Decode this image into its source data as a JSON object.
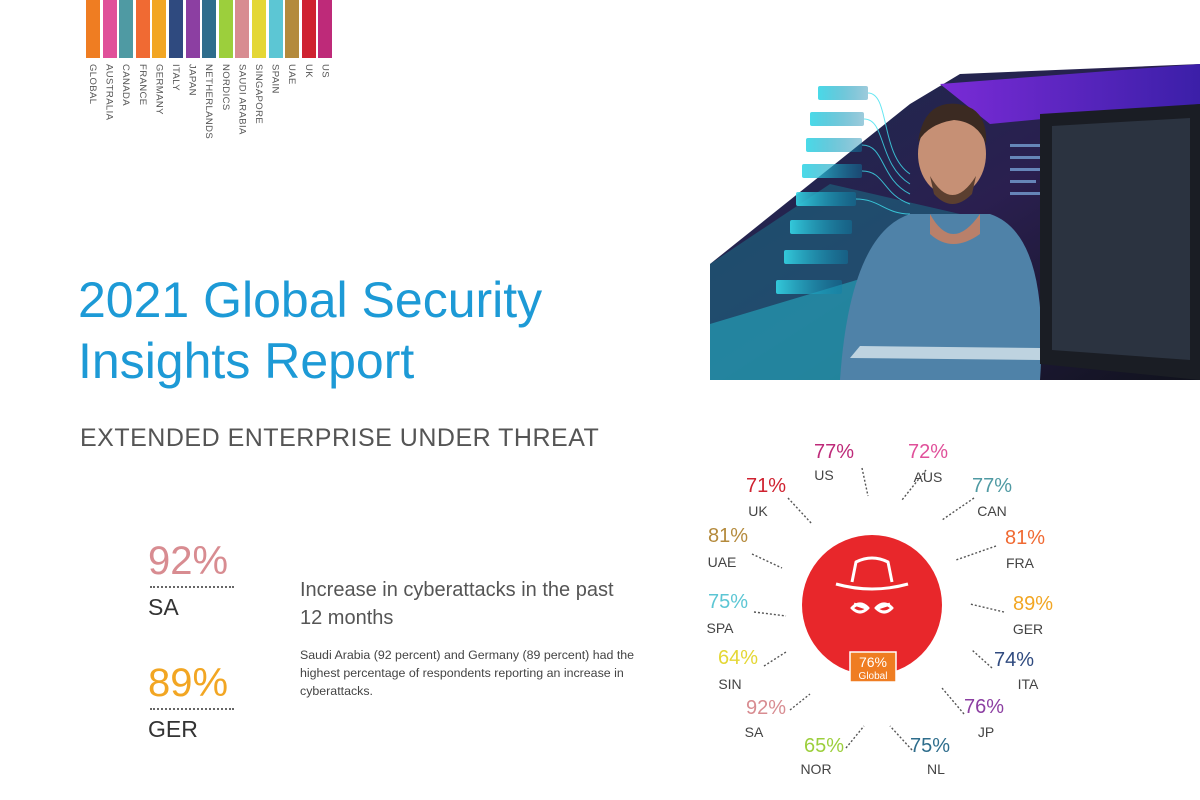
{
  "color_key": [
    {
      "label": "GLOBAL",
      "color": "#ef7d22"
    },
    {
      "label": "AUSTRALIA",
      "color": "#e0509a"
    },
    {
      "label": "CANADA",
      "color": "#4f9aa3"
    },
    {
      "label": "FRANCE",
      "color": "#f06a33"
    },
    {
      "label": "GERMANY",
      "color": "#f2a623"
    },
    {
      "label": "ITALY",
      "color": "#2f4a7f"
    },
    {
      "label": "JAPAN",
      "color": "#8c3fa2"
    },
    {
      "label": "NETHERLANDS",
      "color": "#2e6d8c"
    },
    {
      "label": "NORDICS",
      "color": "#9ccf3c"
    },
    {
      "label": "SAUDI ARABIA",
      "color": "#d88c91"
    },
    {
      "label": "SINGAPORE",
      "color": "#e4d735"
    },
    {
      "label": "SPAIN",
      "color": "#5cc6d4"
    },
    {
      "label": "UAE",
      "color": "#b48a3c"
    },
    {
      "label": "UK",
      "color": "#cf2230"
    },
    {
      "label": "US",
      "color": "#be2a79"
    }
  ],
  "title_line1": "2021 Global Security",
  "title_line2": "Insights Report",
  "subtitle": "EXTENDED ENTERPRISE UNDER THREAT",
  "stats": [
    {
      "value": "92%",
      "label": "SA",
      "color": "#d88c91"
    },
    {
      "value": "89%",
      "label": "GER",
      "color": "#f2a623"
    }
  ],
  "headline": "Increase in cyberattacks in the past 12 months",
  "body": "Saudi Arabia (92 percent) and Germany (89 percent) had the highest percentage of respondents reporting an increase in cyberattacks.",
  "center": {
    "value": "76%",
    "label": "Global",
    "circle_color": "#e8272b",
    "badge_color": "#ef7d22"
  },
  "countries": [
    {
      "value": "77%",
      "label": "US",
      "color": "#be2a79"
    },
    {
      "value": "72%",
      "label": "AUS",
      "color": "#e0509a"
    },
    {
      "value": "77%",
      "label": "CAN",
      "color": "#4f9aa3"
    },
    {
      "value": "81%",
      "label": "FRA",
      "color": "#f06a33"
    },
    {
      "value": "89%",
      "label": "GER",
      "color": "#f2a623"
    },
    {
      "value": "74%",
      "label": "ITA",
      "color": "#2f4a7f"
    },
    {
      "value": "76%",
      "label": "JP",
      "color": "#8c3fa2"
    },
    {
      "value": "75%",
      "label": "NL",
      "color": "#2e6d8c"
    },
    {
      "value": "65%",
      "label": "NOR",
      "color": "#9ccf3c"
    },
    {
      "value": "92%",
      "label": "SA",
      "color": "#d88c91"
    },
    {
      "value": "64%",
      "label": "SIN",
      "color": "#e4d735"
    },
    {
      "value": "75%",
      "label": "SPA",
      "color": "#5cc6d4"
    },
    {
      "value": "81%",
      "label": "UAE",
      "color": "#b48a3c"
    },
    {
      "value": "71%",
      "label": "UK",
      "color": "#cf2230"
    }
  ]
}
